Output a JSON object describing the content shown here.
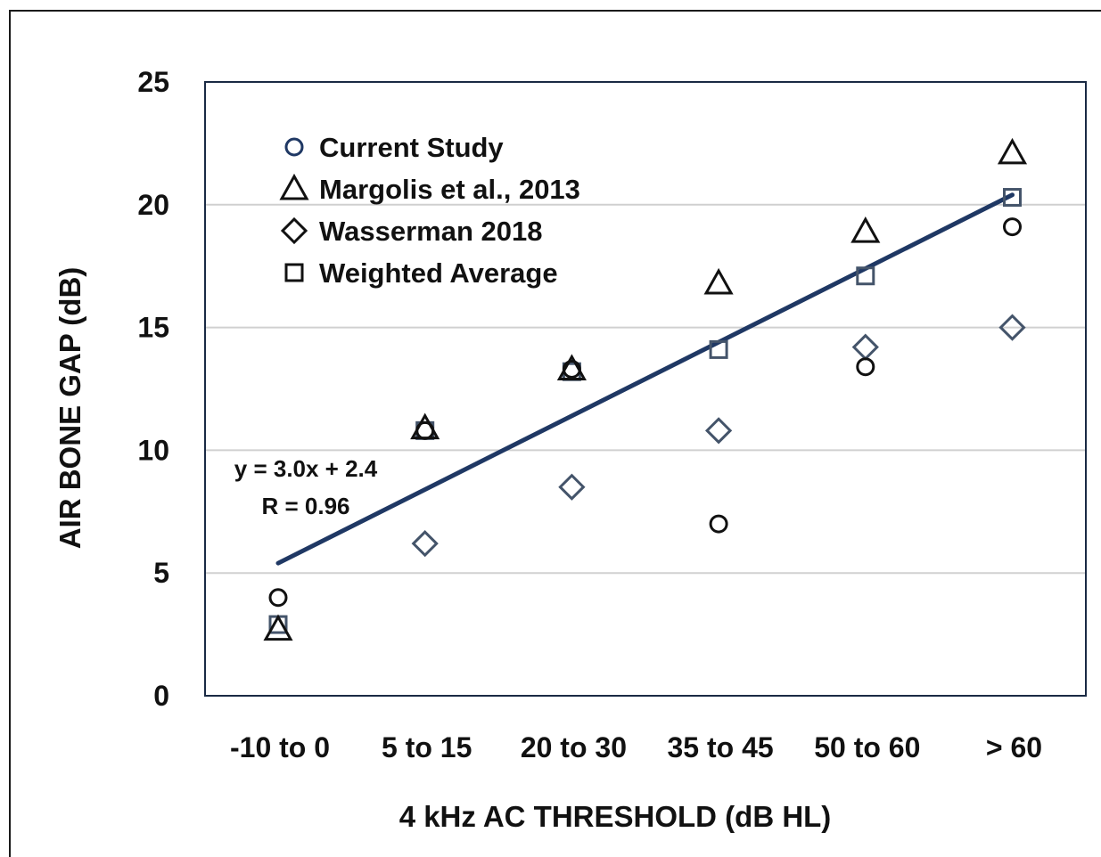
{
  "chart_data": {
    "type": "scatter",
    "title": "",
    "xlabel": "4 kHz AC THRESHOLD (dB HL)",
    "ylabel": "AIR BONE GAP (dB)",
    "categories": [
      "-10 to 0",
      "5 to 15",
      "20 to 30",
      "35 to 45",
      "50 to 60",
      "> 60"
    ],
    "ylim": [
      0,
      25
    ],
    "yticks": [
      "0",
      "5",
      "10",
      "15",
      "20",
      "25"
    ],
    "grid": "horizontal",
    "legend_position": "top-left",
    "series": [
      {
        "name": "Current Study",
        "marker": "circle",
        "color": "#111111",
        "legend_color": "#1f3864",
        "values": [
          4.0,
          10.8,
          13.3,
          7.0,
          13.4,
          19.1
        ]
      },
      {
        "name": "Margolis et al., 2013",
        "marker": "triangle",
        "color": "#111111",
        "values": [
          2.7,
          10.9,
          13.3,
          16.8,
          18.9,
          22.1
        ]
      },
      {
        "name": "Wasserman 2018",
        "marker": "diamond",
        "color": "#44546a",
        "legend_color": "#111111",
        "values": [
          null,
          6.2,
          8.5,
          10.8,
          14.2,
          15.0
        ]
      },
      {
        "name": "Weighted Average",
        "marker": "square",
        "color": "#44546a",
        "legend_color": "#111111",
        "values": [
          2.9,
          10.8,
          13.2,
          14.1,
          17.1,
          20.3
        ]
      }
    ],
    "trendline": {
      "x_start": 1,
      "x_end": 6,
      "slope": 3.0,
      "intercept": 2.4,
      "equation_label": "y = 3.0x + 2.4",
      "r_label": "R = 0.96",
      "color": "#1f3864"
    }
  }
}
